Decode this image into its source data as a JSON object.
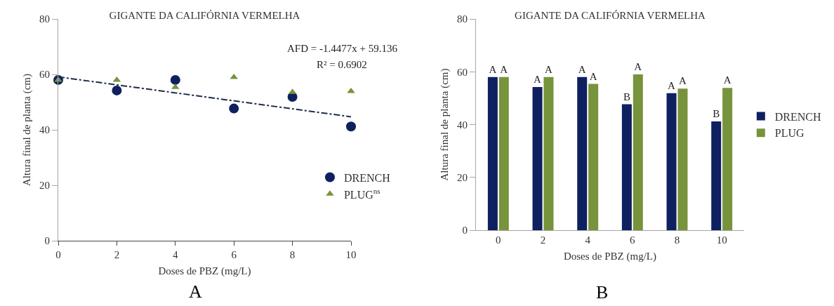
{
  "chart_data": [
    {
      "type": "scatter",
      "title": "GIGANTE DA CALIFÓRNIA VERMELHA",
      "xlabel": "Doses de PBZ (mg/L)",
      "ylabel": "Altura final de planta (cm)",
      "x": [
        0,
        2,
        4,
        6,
        8,
        10
      ],
      "xlim": [
        0,
        10
      ],
      "xticks": [
        0,
        2,
        4,
        6,
        8,
        10
      ],
      "ylim": [
        0,
        80
      ],
      "yticks": [
        0,
        20,
        40,
        60,
        80
      ],
      "grid": false,
      "legend": "bottom right",
      "series": [
        {
          "name": "DRENCH",
          "color": "#0f2060",
          "marker": "circle",
          "values": [
            58,
            54.2,
            58,
            47.7,
            51.9,
            41.2
          ]
        },
        {
          "name": "PLUG$^{ns}$",
          "color": "#77933c",
          "marker": "triangle",
          "values": [
            58,
            58,
            55.4,
            59,
            53.6,
            53.9
          ]
        },
        {
          "type": "line",
          "color": "#1f2d4a",
          "line_style": "dashed",
          "x": [
            0,
            10
          ],
          "values": [
            59.1,
            44.7
          ]
        }
      ],
      "annotations": [
        "AFD = -1.4477x + 59.136",
        "R² = 0.6902",
        "A"
      ]
    },
    {
      "type": "bar",
      "title": "GIGANTE DA CALIFÓRNIA VERMELHA",
      "xlabel": "Doses de PBZ (mg/L)",
      "ylabel": "Altura final de planta (cm)",
      "categories": [
        "0",
        "2",
        "4",
        "6",
        "8",
        "10"
      ],
      "ylim": [
        0,
        80
      ],
      "yticks": [
        0,
        20,
        40,
        60,
        80
      ],
      "grid": false,
      "legend": "right",
      "series": [
        {
          "name": "DRENCH",
          "color": "#0f2060",
          "values": [
            58,
            54.2,
            58,
            47.7,
            51.9,
            41.2
          ],
          "value_labels": [
            "A",
            "A",
            "A",
            "B",
            "A",
            "B"
          ]
        },
        {
          "name": "PLUG",
          "color": "#77933c",
          "values": [
            58,
            58,
            55.4,
            59,
            53.6,
            53.9
          ],
          "value_labels": [
            "A",
            "A",
            "A",
            "A",
            "A",
            "A"
          ]
        }
      ],
      "annotations": [
        "B"
      ]
    }
  ]
}
